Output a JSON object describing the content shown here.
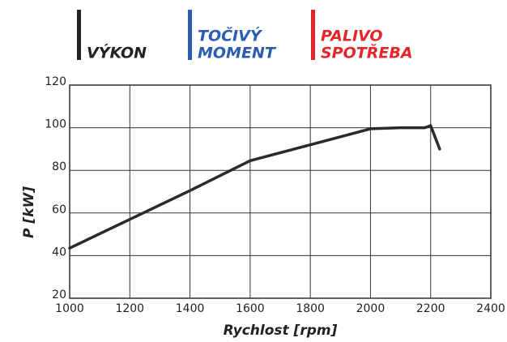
{
  "chart_data": {
    "type": "line",
    "legend": [
      {
        "lines": [
          "VÝKON"
        ],
        "color": "#222222"
      },
      {
        "lines": [
          "TOČIVÝ",
          "MOMENT"
        ],
        "color": "#2a5db0"
      },
      {
        "lines": [
          "PALIVO",
          "SPOTŘEBA"
        ],
        "color": "#e3262b"
      }
    ],
    "x_label": "Rychlost [rpm]",
    "y_label": "P [kW]",
    "x": [
      1000,
      1200,
      1400,
      1600,
      1800,
      2000,
      2100,
      2180,
      2200,
      2230
    ],
    "series": [
      {
        "color": "#2a2a2a",
        "values": [
          43.5,
          57,
          70.5,
          84.5,
          92,
          99.5,
          100,
          100,
          101,
          90
        ]
      }
    ],
    "xlim": [
      1000,
      2400
    ],
    "ylim": [
      20,
      120
    ],
    "xticks": [
      1000,
      1200,
      1400,
      1600,
      1800,
      2000,
      2200,
      2400
    ],
    "yticks": [
      20,
      40,
      60,
      80,
      100,
      120
    ],
    "grid": true
  }
}
